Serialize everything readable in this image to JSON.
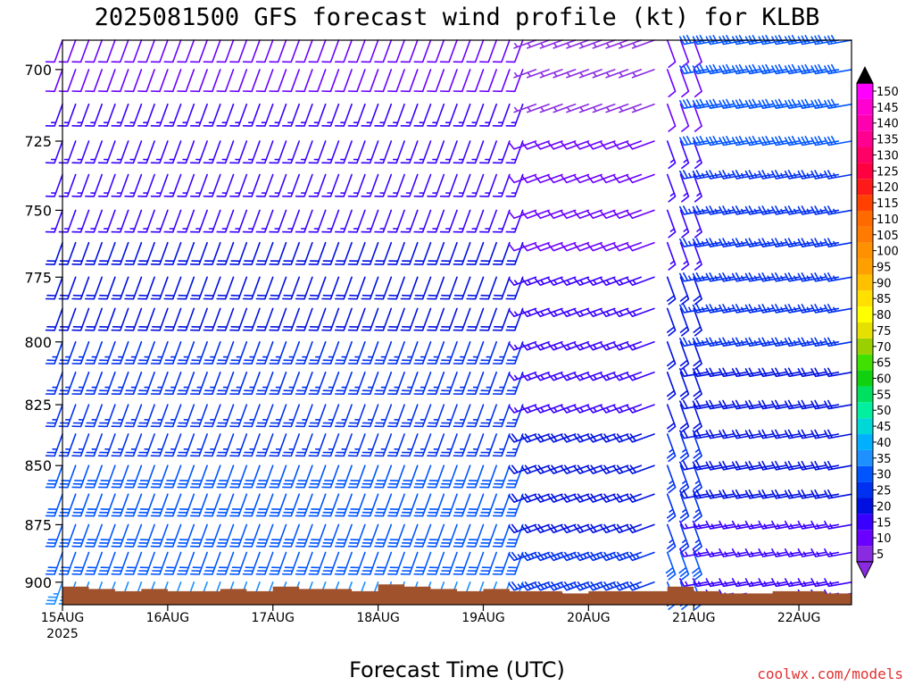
{
  "chart_data": {
    "type": "wind-barb-profile",
    "title": "2025081500 GFS forecast wind profile (kt) for KLBB",
    "xlabel": "Forecast Time (UTC)",
    "ylabel": "",
    "credit": "coolwx.com/models",
    "x_ticks": [
      {
        "hour": 0,
        "label": "15AUG",
        "sub": "2025"
      },
      {
        "hour": 24,
        "label": "16AUG",
        "sub": ""
      },
      {
        "hour": 48,
        "label": "17AUG",
        "sub": ""
      },
      {
        "hour": 72,
        "label": "18AUG",
        "sub": ""
      },
      {
        "hour": 96,
        "label": "19AUG",
        "sub": ""
      },
      {
        "hour": 120,
        "label": "20AUG",
        "sub": ""
      },
      {
        "hour": 144,
        "label": "21AUG",
        "sub": ""
      },
      {
        "hour": 168,
        "label": "22AUG",
        "sub": ""
      }
    ],
    "x_range_hours": [
      0,
      180
    ],
    "y_ticks": [
      {
        "value": 700,
        "label": "700"
      },
      {
        "value": 725,
        "label": "725"
      },
      {
        "value": 750,
        "label": "750"
      },
      {
        "value": 775,
        "label": "775"
      },
      {
        "value": 800,
        "label": "800"
      },
      {
        "value": 825,
        "label": "825"
      },
      {
        "value": 850,
        "label": "850"
      },
      {
        "value": 875,
        "label": "875"
      },
      {
        "value": 900,
        "label": "900"
      }
    ],
    "y_range_hPa": [
      690,
      910
    ],
    "y_scale": "log-pressure",
    "barb_levels_hPa": [
      690,
      700,
      712,
      725,
      737,
      750,
      762,
      775,
      787,
      800,
      812,
      825,
      837,
      850,
      862,
      875,
      887,
      900,
      905
    ],
    "terrain_surface_hPa": [
      {
        "hour": 0,
        "p": 902
      },
      {
        "hour": 6,
        "p": 903
      },
      {
        "hour": 12,
        "p": 904
      },
      {
        "hour": 18,
        "p": 903
      },
      {
        "hour": 24,
        "p": 904
      },
      {
        "hour": 30,
        "p": 904
      },
      {
        "hour": 36,
        "p": 903
      },
      {
        "hour": 42,
        "p": 904
      },
      {
        "hour": 48,
        "p": 902
      },
      {
        "hour": 54,
        "p": 903
      },
      {
        "hour": 60,
        "p": 903
      },
      {
        "hour": 66,
        "p": 904
      },
      {
        "hour": 72,
        "p": 901
      },
      {
        "hour": 78,
        "p": 902
      },
      {
        "hour": 84,
        "p": 903
      },
      {
        "hour": 90,
        "p": 904
      },
      {
        "hour": 96,
        "p": 903
      },
      {
        "hour": 102,
        "p": 904
      },
      {
        "hour": 108,
        "p": 904
      },
      {
        "hour": 114,
        "p": 905
      },
      {
        "hour": 120,
        "p": 904
      },
      {
        "hour": 126,
        "p": 904
      },
      {
        "hour": 132,
        "p": 904
      },
      {
        "hour": 138,
        "p": 902
      },
      {
        "hour": 144,
        "p": 904
      },
      {
        "hour": 150,
        "p": 905
      },
      {
        "hour": 156,
        "p": 905
      },
      {
        "hour": 162,
        "p": 904
      },
      {
        "hour": 168,
        "p": 904
      },
      {
        "hour": 174,
        "p": 905
      },
      {
        "hour": 180,
        "p": 905
      }
    ],
    "terrain_color": "#a0522d",
    "colorbar": {
      "min": 5,
      "max": 150,
      "step": 5,
      "labels": [
        "5",
        "10",
        "15",
        "20",
        "25",
        "30",
        "35",
        "40",
        "45",
        "50",
        "55",
        "60",
        "65",
        "70",
        "75",
        "80",
        "85",
        "90",
        "95",
        "100",
        "105",
        "110",
        "115",
        "120",
        "125",
        "130",
        "135",
        "140",
        "145",
        "150"
      ],
      "colors": [
        "#8a2be2",
        "#6a00ff",
        "#3a00ff",
        "#0010e0",
        "#0030f0",
        "#0055ff",
        "#1e90ff",
        "#00b0ff",
        "#00d8d8",
        "#00f0a0",
        "#00e060",
        "#10d010",
        "#40e000",
        "#9ad000",
        "#e6e000",
        "#ffff00",
        "#ffe000",
        "#ffc000",
        "#ffa000",
        "#ff9000",
        "#ff7a00",
        "#ff6a00",
        "#ff4000",
        "#ff1a1a",
        "#ff0040",
        "#ff0066",
        "#ff0090",
        "#ff00b0",
        "#ff00d0",
        "#ff00ff"
      ]
    },
    "wind_regimes": [
      {
        "from_hour": 0,
        "to_hour": 108,
        "direction_deg": 200,
        "speed_top_kt": 10,
        "speed_bottom_kt": 35
      },
      {
        "from_hour": 108,
        "to_hour": 138,
        "direction_deg": 250,
        "speed_top_kt": 5,
        "speed_bottom_kt": 25
      },
      {
        "from_hour": 138,
        "to_hour": 145,
        "direction_deg": 160,
        "speed_top_kt": 10,
        "speed_bottom_kt": 30
      },
      {
        "from_hour": 145,
        "to_hour": 180,
        "direction_deg": 260,
        "speed_top_kt": 30,
        "speed_bottom_kt": 15
      }
    ]
  }
}
